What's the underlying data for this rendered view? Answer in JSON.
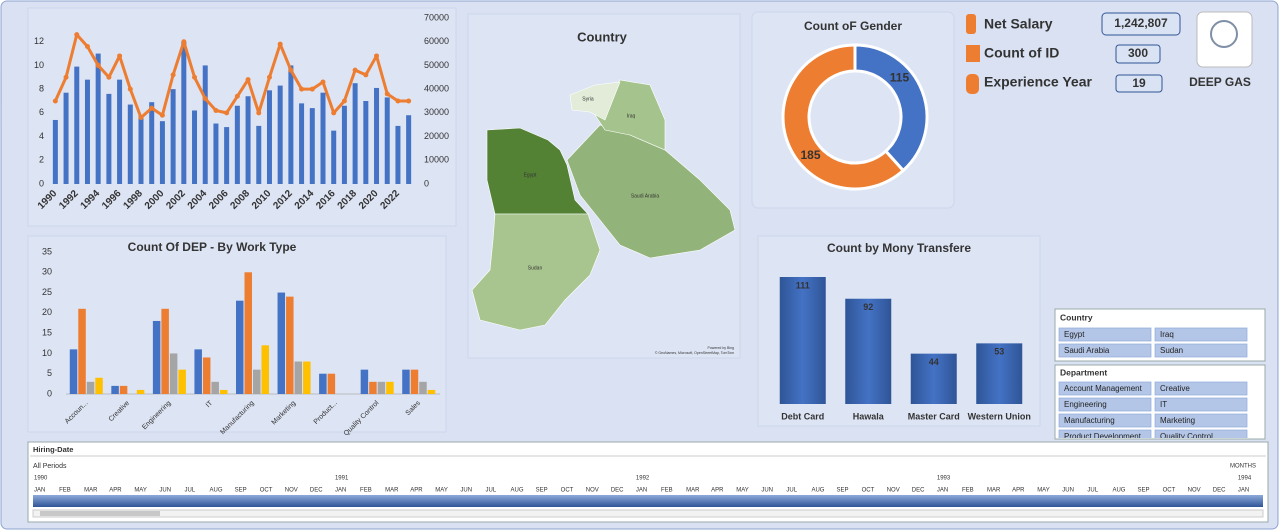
{
  "chart_data": [
    {
      "type": "bar_line",
      "categories": [
        "1990",
        null,
        "1992",
        null,
        "1994",
        null,
        "1996",
        null,
        "1998",
        null,
        "2000",
        null,
        "2002",
        null,
        "2004",
        null,
        "2006",
        null,
        "2008",
        null,
        "2010",
        null,
        "2012",
        null,
        "2014",
        null,
        "2016",
        null,
        "2018",
        null,
        "2020",
        null,
        "2022",
        null
      ],
      "series": [
        {
          "color": "#4472c4",
          "values": [
            5.4,
            7.7,
            9.9,
            8.8,
            11,
            7.6,
            8.8,
            6.7,
            5.8,
            6.9,
            5.3,
            8,
            12,
            6.2,
            10,
            5.1,
            4.8,
            6.6,
            7.4,
            4.9,
            7.9,
            8.3,
            10,
            6.8,
            6.4,
            7.7,
            4.5,
            6.6,
            8.5,
            7,
            8.1,
            7.3,
            4.9,
            5.8
          ]
        },
        {
          "color": "#ed7d31",
          "axis": "y2",
          "values": [
            35000,
            45000,
            63000,
            58000,
            50000,
            45000,
            54000,
            40000,
            28000,
            32000,
            29000,
            46000,
            60000,
            45000,
            36000,
            31000,
            30000,
            37000,
            44000,
            30000,
            45000,
            59000,
            48000,
            40000,
            40000,
            43000,
            30000,
            35000,
            48000,
            46000,
            54000,
            38000,
            35000,
            35000
          ]
        }
      ],
      "ylim": [
        0,
        14
      ],
      "yticks": [
        0,
        2,
        4,
        6,
        8,
        10,
        12
      ],
      "y2lim": [
        0,
        70000
      ],
      "y2ticks": [
        0,
        10000,
        20000,
        30000,
        40000,
        50000,
        60000,
        70000
      ]
    },
    {
      "type": "bar",
      "title": "Count Of DEP - By Work Type",
      "categories": [
        "Accoun...",
        "Creative",
        "Engineering",
        "IT",
        "Manufacturing",
        "Marketing",
        "Product...",
        "Quality Control",
        "Sales"
      ],
      "series": [
        {
          "color": "#4472c4",
          "values": [
            11,
            2,
            18,
            11,
            23,
            25,
            5,
            6,
            6
          ]
        },
        {
          "color": "#ed7d31",
          "values": [
            21,
            2,
            21,
            9,
            30,
            24,
            5,
            3,
            6
          ]
        },
        {
          "color": "#a5a5a5",
          "values": [
            3,
            0,
            10,
            3,
            6,
            8,
            0,
            3,
            3
          ]
        },
        {
          "color": "#ffc000",
          "values": [
            4,
            1,
            6,
            1,
            12,
            8,
            0,
            3,
            1
          ]
        }
      ],
      "ylim": [
        0,
        35
      ],
      "yticks": [
        0,
        5,
        10,
        15,
        20,
        25,
        30,
        35
      ],
      "grid": false
    },
    {
      "type": "donut",
      "title": "Count oF Gender",
      "values": [
        115,
        185
      ],
      "colors": [
        "#4472c4",
        "#ed7d31"
      ]
    },
    {
      "type": "bar",
      "title": "Count by Mony Transfere",
      "categories": [
        "Debt Card",
        "Hawala",
        "Master Card",
        "Western Union"
      ],
      "values": [
        111,
        92,
        44,
        53
      ],
      "color": "#4472c4"
    }
  ],
  "map": {
    "title": "Country",
    "regions": [
      "Egypt",
      "Sudan",
      "Saudi Arabia",
      "Iraq",
      "Syria"
    ],
    "credits": [
      "Powered by Bing",
      "© GeoNames, Microsoft, OpenStreetMap, TomTom"
    ]
  },
  "kpis": [
    {
      "label": "Net Salary",
      "value": "1,242,807"
    },
    {
      "label": "Count of ID",
      "value": "300"
    },
    {
      "label": "Experience Year",
      "value": "19"
    }
  ],
  "logo": "DEEP GAS",
  "slicers": [
    {
      "title": "Country",
      "items": [
        "Egypt",
        "Iraq",
        "Saudi Arabia",
        "Sudan"
      ]
    },
    {
      "title": "Department",
      "items": [
        "Account Management",
        "Creative",
        "Engineering",
        "IT",
        "Manufacturing",
        "Marketing",
        "Product Development",
        "Quality Control"
      ]
    }
  ],
  "timeline": {
    "title": "Hiring-Date",
    "period": "All Periods",
    "level": "MONTHS",
    "years": [
      "1990",
      "1991",
      "1992",
      "1993",
      "1994"
    ],
    "months": [
      "JAN",
      "FEB",
      "MAR",
      "APR",
      "MAY",
      "JUN",
      "JUL",
      "AUG",
      "SEP",
      "OCT",
      "NOV",
      "DEC"
    ]
  }
}
